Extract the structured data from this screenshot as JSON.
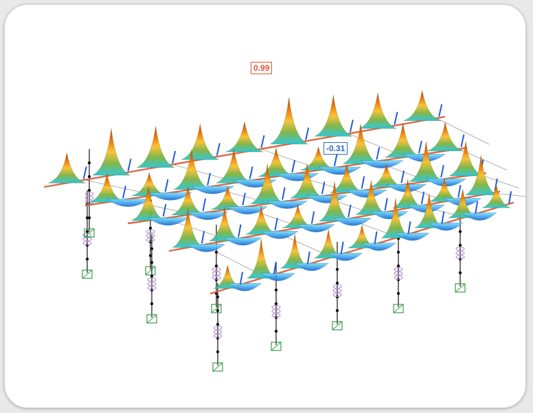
{
  "viewport": {
    "title": "",
    "max_value_label": "0.99",
    "min_value_label": "-0.31"
  },
  "colors": {
    "background": "#e9e9e9",
    "panel": "#ffffff",
    "beam_line": "#d9694a",
    "column_line": "#333333",
    "support_symbol": "#3a9a4a",
    "spring_symbol": "#b08ad0",
    "max_label": "#e0522e",
    "min_label": "#2e67c8",
    "peak_palette": [
      "#c62828",
      "#ef6c00",
      "#fbc02d",
      "#7cb342",
      "#26c6da"
    ],
    "trough_palette": [
      "#1565c0",
      "#42a5f5",
      "#80deea"
    ]
  },
  "icons": [
    "support-icon",
    "spring-icon"
  ]
}
